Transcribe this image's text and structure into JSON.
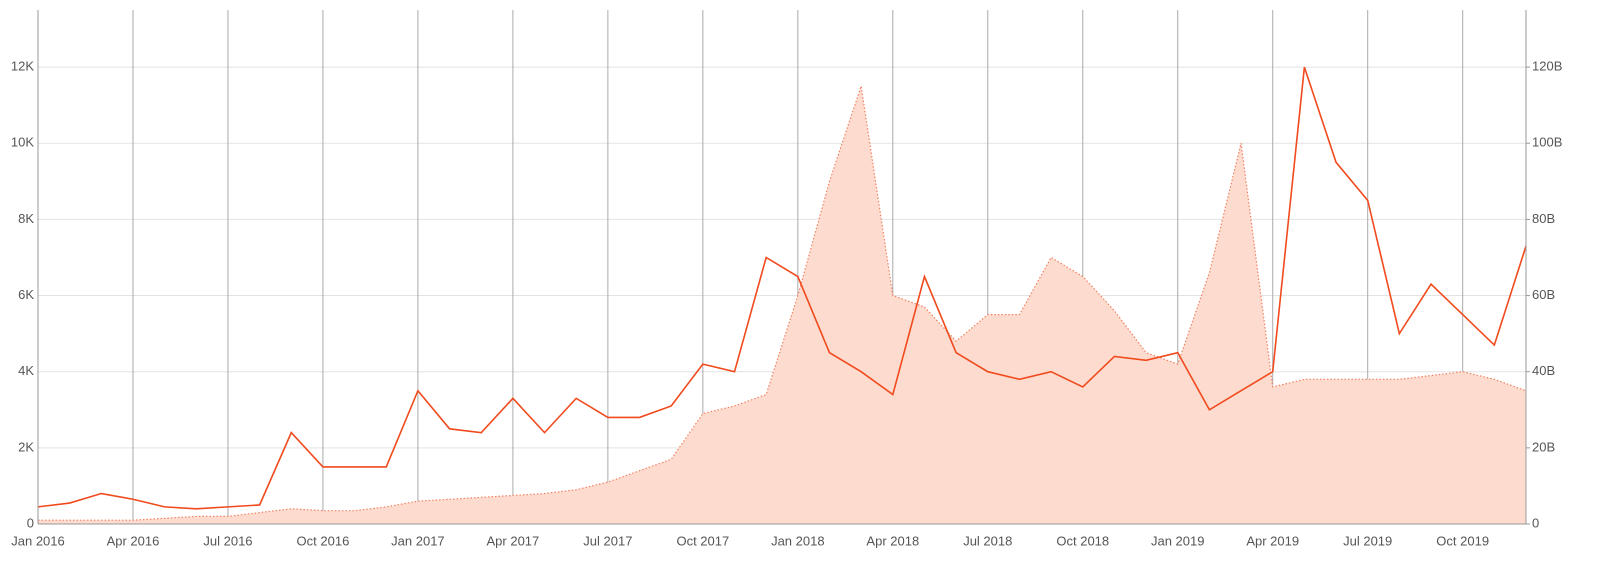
{
  "chart_data": {
    "type": "line",
    "x": [
      "2016-01",
      "2016-02",
      "2016-03",
      "2016-04",
      "2016-05",
      "2016-06",
      "2016-07",
      "2016-08",
      "2016-09",
      "2016-10",
      "2016-11",
      "2016-12",
      "2017-01",
      "2017-02",
      "2017-03",
      "2017-04",
      "2017-05",
      "2017-06",
      "2017-07",
      "2017-08",
      "2017-09",
      "2017-10",
      "2017-11",
      "2017-12",
      "2018-01",
      "2018-02",
      "2018-03",
      "2018-04",
      "2018-05",
      "2018-06",
      "2018-07",
      "2018-08",
      "2018-09",
      "2018-10",
      "2018-11",
      "2018-12",
      "2019-01",
      "2019-02",
      "2019-03",
      "2019-04",
      "2019-05",
      "2019-06",
      "2019-07",
      "2019-08",
      "2019-09",
      "2019-10",
      "2019-11",
      "2019-12"
    ],
    "xlim": [
      "2016-01",
      "2019-12"
    ],
    "xticks": [
      {
        "value": "2016-01",
        "label": "Jan 2016"
      },
      {
        "value": "2016-04",
        "label": "Apr 2016"
      },
      {
        "value": "2016-07",
        "label": "Jul 2016"
      },
      {
        "value": "2016-10",
        "label": "Oct 2016"
      },
      {
        "value": "2017-01",
        "label": "Jan 2017"
      },
      {
        "value": "2017-04",
        "label": "Apr 2017"
      },
      {
        "value": "2017-07",
        "label": "Jul 2017"
      },
      {
        "value": "2017-10",
        "label": "Oct 2017"
      },
      {
        "value": "2018-01",
        "label": "Jan 2018"
      },
      {
        "value": "2018-04",
        "label": "Apr 2018"
      },
      {
        "value": "2018-07",
        "label": "Jul 2018"
      },
      {
        "value": "2018-10",
        "label": "Oct 2018"
      },
      {
        "value": "2019-01",
        "label": "Jan 2019"
      },
      {
        "value": "2019-04",
        "label": "Apr 2019"
      },
      {
        "value": "2019-07",
        "label": "Jul 2019"
      },
      {
        "value": "2019-10",
        "label": "Oct 2019"
      }
    ],
    "ylim": [
      0,
      13500
    ],
    "yticks": [
      0,
      {
        "value": 2000,
        "label": "2K"
      },
      {
        "value": 4000,
        "label": "4K"
      },
      {
        "value": 6000,
        "label": "6K"
      },
      {
        "value": 8000,
        "label": "8K"
      },
      {
        "value": 10000,
        "label": "10K"
      },
      {
        "value": 12000,
        "label": "12K"
      }
    ],
    "y2lim": [
      0,
      135000000000.0
    ],
    "y2ticks": [
      0,
      {
        "value": 20000000000.0,
        "label": "20B"
      },
      {
        "value": 40000000000.0,
        "label": "40B"
      },
      {
        "value": 60000000000.0,
        "label": "60B"
      },
      {
        "value": 80000000000.0,
        "label": "80B"
      },
      {
        "value": 100000000000.0,
        "label": "100B"
      },
      {
        "value": 120000000000.0,
        "label": "120B"
      }
    ],
    "grid": true,
    "series": [
      {
        "type": "area",
        "axis": "y2",
        "color": "#f47f5f",
        "fill": "#fddccf",
        "values": [
          1000000000.0,
          1000000000.0,
          1000000000.0,
          1000000000.0,
          1500000000.0,
          2000000000.0,
          2000000000.0,
          3000000000.0,
          4000000000.0,
          3500000000.0,
          3500000000.0,
          4500000000.0,
          6000000000.0,
          6500000000.0,
          7000000000.0,
          7500000000.0,
          8000000000.0,
          9000000000.0,
          11000000000.0,
          14000000000.0,
          17000000000.0,
          29000000000.0,
          31000000000.0,
          34000000000.0,
          60000000000.0,
          90000000000.0,
          115000000000.0,
          60000000000.0,
          57000000000.0,
          48000000000.0,
          55000000000.0,
          55000000000.0,
          70000000000.0,
          65000000000.0,
          56000000000.0,
          45000000000.0,
          42000000000.0,
          66000000000.0,
          100000000000.0,
          36000000000.0,
          38000000000.0,
          38000000000.0,
          38000000000.0,
          38000000000.0,
          39000000000.0,
          40000000000.0,
          38000000000.0,
          35000000000.0
        ]
      },
      {
        "type": "line",
        "axis": "y",
        "color": "#f04a1d",
        "values": [
          450,
          550,
          800,
          650,
          450,
          400,
          450,
          500,
          2400,
          1500,
          1500,
          1500,
          3500,
          2500,
          2400,
          3300,
          2400,
          3300,
          2800,
          2800,
          3100,
          4200,
          4000,
          7000,
          6500,
          4500,
          4000,
          3400,
          6500,
          4500,
          4000,
          3800,
          4000,
          3600,
          4400,
          4300,
          4500,
          3000,
          3500,
          4000,
          12000,
          9500,
          8500,
          5000,
          6300,
          5500,
          4700,
          7300
        ]
      }
    ]
  }
}
